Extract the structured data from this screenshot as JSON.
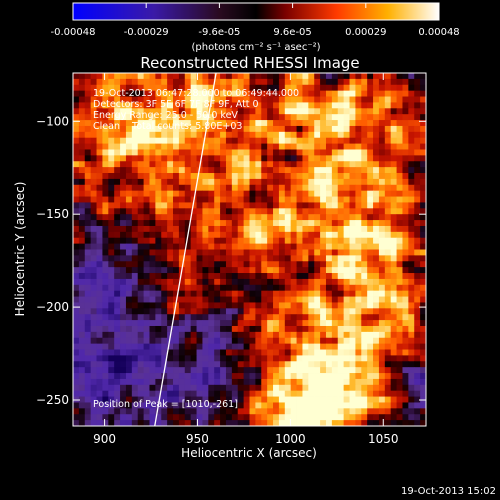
{
  "chart_data": {
    "type": "heatmap",
    "title": "Reconstructed RHESSI Image",
    "xlabel": "Heliocentric X (arcsec)",
    "ylabel": "Heliocentric Y (arcsec)",
    "xlim": [
      883,
      1073
    ],
    "ylim": [
      -264,
      -74
    ],
    "xticks": [
      900,
      950,
      1000,
      1050
    ],
    "yticks": [
      -100,
      -150,
      -200,
      -250
    ],
    "colorbar": {
      "ticks": [
        "-0.00048",
        "-0.00029",
        "-9.6e-05",
        "9.6e-05",
        "0.00029",
        "0.00048"
      ],
      "range": [
        -0.00048,
        0.00048
      ],
      "units_label": "(photons cm⁻² s⁻¹ asec⁻²)"
    },
    "annotations": {
      "time_range": "19-Oct-2013 06:47:28.000 to 06:49:44.000",
      "detectors": "Detectors: 3F 5F 6F 7F 8F 9F, Att 0",
      "energy_range": "Energy Range: 25.0 - 50.0 keV",
      "clean_counts": "Clean    Total counts: 5.80E+03",
      "peak": "Position of Peak = [1010,-261]"
    },
    "limb_line": [
      [
        927,
        -264
      ],
      [
        960,
        -74
      ]
    ],
    "peak_position": [
      1010,
      -261
    ],
    "bright_regions": [
      {
        "x": 1010,
        "y": -255,
        "sx": 22,
        "sy": 14,
        "amp": 1.0
      },
      {
        "x": 1035,
        "y": -215,
        "sx": 20,
        "sy": 26,
        "amp": 0.75
      },
      {
        "x": 995,
        "y": -220,
        "sx": 18,
        "sy": 18,
        "amp": 0.45
      },
      {
        "x": 1030,
        "y": -105,
        "sx": 26,
        "sy": 22,
        "amp": 0.7
      },
      {
        "x": 1045,
        "y": -165,
        "sx": 16,
        "sy": 22,
        "amp": 0.6
      },
      {
        "x": 910,
        "y": -110,
        "sx": 30,
        "sy": 30,
        "amp": 0.55
      },
      {
        "x": 955,
        "y": -100,
        "sx": 25,
        "sy": 20,
        "amp": 0.5
      },
      {
        "x": 985,
        "y": -150,
        "sx": 30,
        "sy": 16,
        "amp": 0.45
      },
      {
        "x": 935,
        "y": -185,
        "sx": 20,
        "sy": 25,
        "amp": 0.35
      }
    ],
    "dim_regions": [
      {
        "x": 905,
        "y": -215,
        "sx": 25,
        "sy": 45,
        "amp": 0.55
      },
      {
        "x": 960,
        "y": -235,
        "sx": 22,
        "sy": 25,
        "amp": 0.35
      },
      {
        "x": 1065,
        "y": -245,
        "sx": 10,
        "sy": 15,
        "amp": 0.3
      }
    ],
    "colors": {
      "background": "#000000",
      "foreground": "#ffffff"
    }
  },
  "footer": {
    "timestamp": "19-Oct-2013 15:02"
  }
}
